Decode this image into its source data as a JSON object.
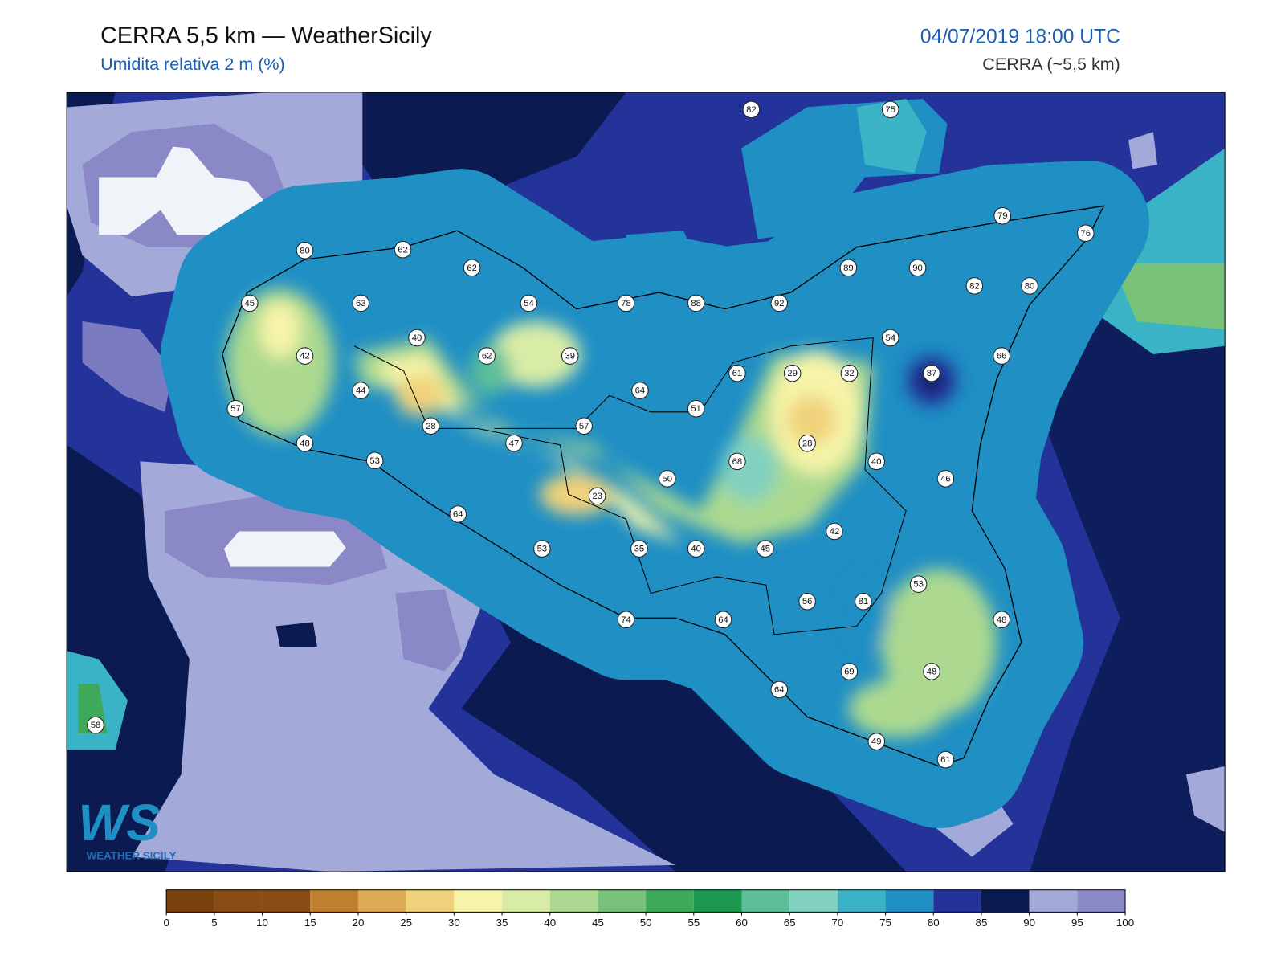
{
  "header": {
    "title": "CERRA 5,5 km — WeatherSicily",
    "subtitle": "Umidita relativa 2 m (%)",
    "datetime": "04/07/2019 18:00 UTC",
    "model": "CERRA (~5,5 km)"
  },
  "stations": [
    80,
    62,
    62,
    45,
    63,
    54,
    78,
    88,
    92,
    89,
    90,
    82,
    80,
    79,
    76,
    82,
    75,
    40,
    42,
    62,
    39,
    54,
    66,
    87,
    61,
    29,
    32,
    44,
    64,
    57,
    51,
    28,
    57,
    48,
    47,
    28,
    53,
    68,
    40,
    50,
    46,
    23,
    64,
    42,
    53,
    35,
    40,
    45,
    53,
    56,
    81,
    74,
    64,
    48,
    69,
    48,
    64,
    58,
    49,
    61
  ],
  "colorbar": {
    "ticks": [
      0,
      5,
      10,
      15,
      20,
      25,
      30,
      35,
      40,
      45,
      50,
      55,
      60,
      65,
      70,
      75,
      80,
      85,
      90,
      95,
      100
    ],
    "colors": [
      "#7a430e",
      "#8a4c12",
      "#8a4c12",
      "#c0802e",
      "#dcaa55",
      "#f0d27a",
      "#f6f4a8",
      "#d9eca6",
      "#acd98f",
      "#77c178",
      "#3fa95a",
      "#1a9850",
      "#5cbf9a",
      "#80d1c0",
      "#3bb3c6",
      "#1f8fc4",
      "#24339a",
      "#0b1b52",
      "#a3aad9",
      "#8b88c8"
    ]
  },
  "logo": {
    "mark": "WS",
    "text": "WEATHER SICILY"
  }
}
